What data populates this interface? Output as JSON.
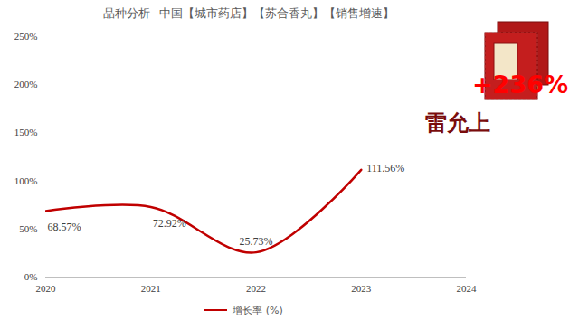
{
  "chart_data": {
    "type": "line",
    "title": "品种分析--中国【城市药店】【苏合香丸】【销售增速】",
    "x": [
      2020,
      2021,
      2022,
      2023
    ],
    "series": [
      {
        "name": "增长率 (%)",
        "color": "#c00000",
        "values": [
          68.57,
          72.92,
          25.73,
          111.56
        ],
        "value_labels": [
          "68.57%",
          "72.92%",
          "25.73%",
          "111.56%"
        ]
      }
    ],
    "xlim": [
      2020,
      2024
    ],
    "xticks": [
      2020,
      2021,
      2022,
      2023,
      2024
    ],
    "ylim": [
      0,
      250
    ],
    "yticks": [
      {
        "value": 0,
        "label": "0%"
      },
      {
        "value": 50,
        "label": "50%"
      },
      {
        "value": 100,
        "label": "100%"
      },
      {
        "value": 150,
        "label": "150%"
      },
      {
        "value": 200,
        "label": "200%"
      },
      {
        "value": 250,
        "label": "250%"
      }
    ],
    "grid": false,
    "legend": "bottom",
    "data_labels": true,
    "annotations": [
      "雷允上",
      "+236%"
    ]
  }
}
